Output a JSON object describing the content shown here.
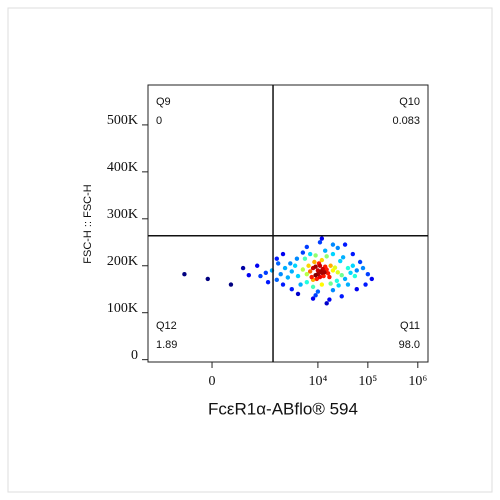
{
  "chart_data": {
    "type": "scatter",
    "x_label": "FcεR1α-ABflo® 594",
    "y_label": "FSC-H :: FSC-H",
    "xscale": "arcsinh",
    "xlim": [
      -1450,
      1600000
    ],
    "ylim": [
      -5000,
      585000
    ],
    "xticks": [
      0,
      {
        "value": 10000,
        "label": "10⁴"
      },
      {
        "value": 100000,
        "label": "10⁵"
      },
      {
        "value": 1000000,
        "label": "10⁶"
      }
    ],
    "yticks": [
      0,
      {
        "value": 100000,
        "label": "100K"
      },
      {
        "value": 200000,
        "label": "200K"
      },
      {
        "value": 300000,
        "label": "300K"
      },
      {
        "value": 400000,
        "label": "400K"
      },
      {
        "value": 500000,
        "label": "500K"
      }
    ],
    "gate": {
      "x": 1260,
      "y": 264000
    },
    "quadrants": {
      "names": [
        "Q9",
        "Q10",
        "Q11",
        "Q12"
      ],
      "values": [
        0,
        0.083,
        98,
        1.89
      ],
      "value_labels": [
        "0",
        "0.083",
        "98.0",
        "1.89"
      ]
    },
    "x": [
      10000,
      12000,
      8000,
      15000,
      9000,
      11000,
      13000,
      7000,
      20000,
      10500,
      6000,
      14000,
      9500,
      16000,
      8500,
      12500,
      18000,
      7500,
      11500,
      10000,
      25000,
      5000,
      9000,
      13500,
      6500,
      17000,
      8000,
      22000,
      11000,
      12000,
      4000,
      30000,
      3500,
      40000,
      5500,
      28000,
      6000,
      24000,
      15000,
      9000,
      3000,
      45000,
      4500,
      35000,
      20000,
      7000,
      2800,
      50000,
      12000,
      18000,
      2500,
      60000,
      3800,
      32000,
      8000,
      26000,
      5000,
      14000,
      2200,
      55000,
      1800,
      1500,
      1200,
      900,
      700,
      2000,
      1600,
      80000,
      100000,
      70000,
      3000,
      10000,
      20000,
      40000,
      6000,
      25000,
      11000,
      50000,
      1000,
      400,
      -250,
      -30,
      150,
      300,
      8000,
      15000,
      4000,
      30000,
      60000,
      12000,
      20000,
      2000,
      120000,
      90000,
      1500,
      600,
      35000,
      9000,
      17000
    ],
    "y": [
      190000,
      185000,
      195000,
      192000,
      180000,
      200000,
      178000,
      188000,
      190000,
      205000,
      182000,
      198000,
      172000,
      184000,
      208000,
      193000,
      200000,
      176000,
      188000,
      182000,
      186000,
      192000,
      198000,
      186000,
      200000,
      176000,
      170000,
      196000,
      176000,
      212000,
      178000,
      180000,
      200000,
      195000,
      215000,
      210000,
      165000,
      168000,
      220000,
      222000,
      188000,
      185000,
      160000,
      172000,
      225000,
      225000,
      205000,
      200000,
      160000,
      162000,
      175000,
      190000,
      215000,
      218000,
      155000,
      158000,
      228000,
      232000,
      195000,
      178000,
      182000,
      170000,
      190000,
      185000,
      178000,
      160000,
      205000,
      195000,
      182000,
      208000,
      150000,
      145000,
      148000,
      160000,
      240000,
      238000,
      250000,
      225000,
      165000,
      180000,
      182000,
      172000,
      160000,
      195000,
      130000,
      120000,
      140000,
      135000,
      150000,
      258000,
      245000,
      225000,
      172000,
      160000,
      215000,
      200000,
      245000,
      137000,
      128000
    ]
  }
}
